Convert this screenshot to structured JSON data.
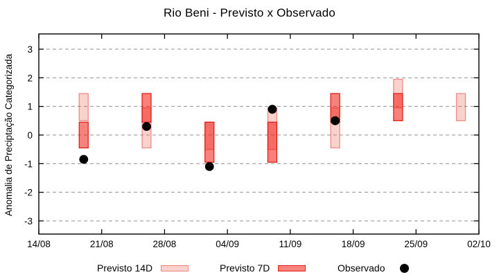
{
  "title": "Rio Beni - Previsto x Observado",
  "chart_data": {
    "type": "bar",
    "subtype": "range-bars-with-scatter-overlay",
    "title": "Rio Beni - Previsto x Observado",
    "xlabel": "",
    "ylabel": "Anomalia de Preciptação Categorizada",
    "x_tick_labels": [
      "14/08",
      "21/08",
      "28/08",
      "04/09",
      "11/09",
      "18/09",
      "25/09",
      "02/10"
    ],
    "x_tick_days": [
      0,
      7,
      14,
      21,
      28,
      35,
      42,
      49
    ],
    "x_range_days": [
      0,
      49
    ],
    "y_ticks": [
      -3,
      -2,
      -1,
      0,
      1,
      2,
      3
    ],
    "ylim": [
      -3.5,
      3.55
    ],
    "grid": "horizontal dashed gray lines at every integer y",
    "legend_position": "bottom",
    "colors": {
      "previsto14d_fill": "rgba(235,90,75,0.28)",
      "previsto14d_border": "rgba(228,50,40,0.5)",
      "previsto7d_fill": "rgba(240,25,15,0.55)",
      "previsto7d_border": "#e1201a",
      "observado": "#000000",
      "grid": "#909090",
      "axis": "#000000"
    },
    "series": [
      {
        "name": "Previsto 14D",
        "type": "range_bar",
        "points": [
          {
            "date": "19/08",
            "day": 5,
            "low": 0.5,
            "high": 1.45
          },
          {
            "date": "26/08",
            "day": 12,
            "low": -0.45,
            "high": 0.95
          },
          {
            "date": "02/09",
            "day": 19,
            "low": -0.5,
            "high": 0.45
          },
          {
            "date": "09/09",
            "day": 26,
            "low": -0.5,
            "high": 0.95
          },
          {
            "date": "16/09",
            "day": 33,
            "low": -0.45,
            "high": 0.95
          },
          {
            "date": "23/09",
            "day": 40,
            "low": 0.95,
            "high": 1.95
          },
          {
            "date": "30/09",
            "day": 47,
            "low": 0.5,
            "high": 1.45
          }
        ]
      },
      {
        "name": "Previsto 7D",
        "type": "range_bar",
        "points": [
          {
            "date": "19/08",
            "day": 5,
            "low": -0.45,
            "high": 0.45
          },
          {
            "date": "26/08",
            "day": 12,
            "low": 0.45,
            "high": 1.45
          },
          {
            "date": "02/09",
            "day": 19,
            "low": -0.95,
            "high": 0.45
          },
          {
            "date": "09/09",
            "day": 26,
            "low": -0.95,
            "high": 0.45
          },
          {
            "date": "16/09",
            "day": 33,
            "low": 0.45,
            "high": 1.45
          },
          {
            "date": "23/09",
            "day": 40,
            "low": 0.5,
            "high": 1.45
          }
        ]
      },
      {
        "name": "Observado",
        "type": "scatter",
        "points": [
          {
            "date": "19/08",
            "day": 5,
            "value": -0.85
          },
          {
            "date": "26/08",
            "day": 12,
            "value": 0.3
          },
          {
            "date": "02/09",
            "day": 19,
            "value": -1.1
          },
          {
            "date": "09/09",
            "day": 26,
            "value": 0.9
          },
          {
            "date": "16/09",
            "day": 33,
            "value": 0.5
          }
        ]
      }
    ],
    "legend": [
      {
        "label": "Previsto 14D",
        "swatch": "light-bar"
      },
      {
        "label": "Previsto 7D",
        "swatch": "dark-bar"
      },
      {
        "label": "Observado",
        "swatch": "black-dot"
      }
    ]
  }
}
